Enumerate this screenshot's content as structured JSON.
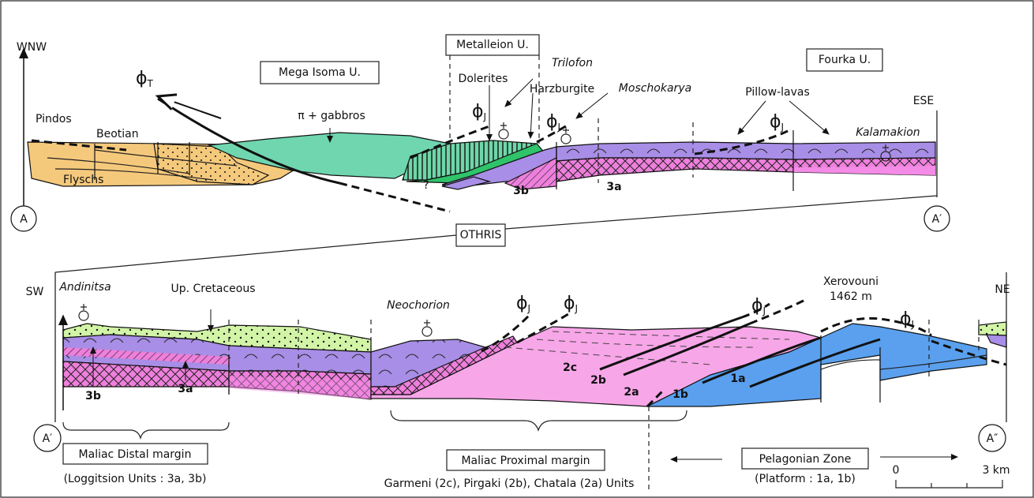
{
  "top_section": {
    "orientation_left": "WNW",
    "orientation_right": "ESE",
    "point_start": "A",
    "point_end": "A′",
    "units": [
      "Mega Isoma U.",
      "Metalleion U.",
      "Fourka U."
    ],
    "labels": [
      "Pindos",
      "Beotian",
      "Flyschs",
      "π + gabbros",
      "Dolerites",
      "Harzburgite",
      "Pillow-lavas",
      "3b",
      "3a",
      "?"
    ],
    "localities": [
      "Trilofon",
      "Moschokarya",
      "Kalamakion"
    ],
    "faults": [
      {
        "symbol": "ϕ",
        "sub": "T"
      },
      {
        "symbol": "ϕ",
        "sub": "J"
      },
      {
        "symbol": "ϕ",
        "sub": "J"
      },
      {
        "symbol": "ϕ",
        "sub": "J"
      }
    ]
  },
  "section_name": "OTHRIS",
  "bottom_section": {
    "orientation_left": "SW",
    "orientation_right": "NE",
    "point_start": "A′",
    "point_end": "A″",
    "localities": [
      "Andinitsa",
      "Neochorion"
    ],
    "labels": [
      "Up. Cretaceous",
      "Xerovouni",
      "1462 m",
      "3b",
      "3a",
      "2c",
      "2b",
      "2a",
      "1b",
      "1a"
    ],
    "faults": [
      {
        "symbol": "ϕ",
        "sub": "J"
      },
      {
        "symbol": "ϕ",
        "sub": "J"
      },
      {
        "symbol": "ϕ",
        "sub": "J"
      },
      {
        "symbol": "ϕ",
        "sub": "J"
      }
    ],
    "domains": [
      {
        "title": "Maliac Distal margin",
        "subtitle": "(Loggitsion Units : 3a, 3b)"
      },
      {
        "title": "Maliac Proximal margin",
        "subtitle": "Garmeni (2c), Pirgaki (2b), Chatala (2a) Units"
      },
      {
        "title": "Pelagonian Zone",
        "subtitle": "(Platform : 1a, 1b)"
      }
    ],
    "scale_bar": {
      "start": "0",
      "end": "3 km"
    }
  }
}
